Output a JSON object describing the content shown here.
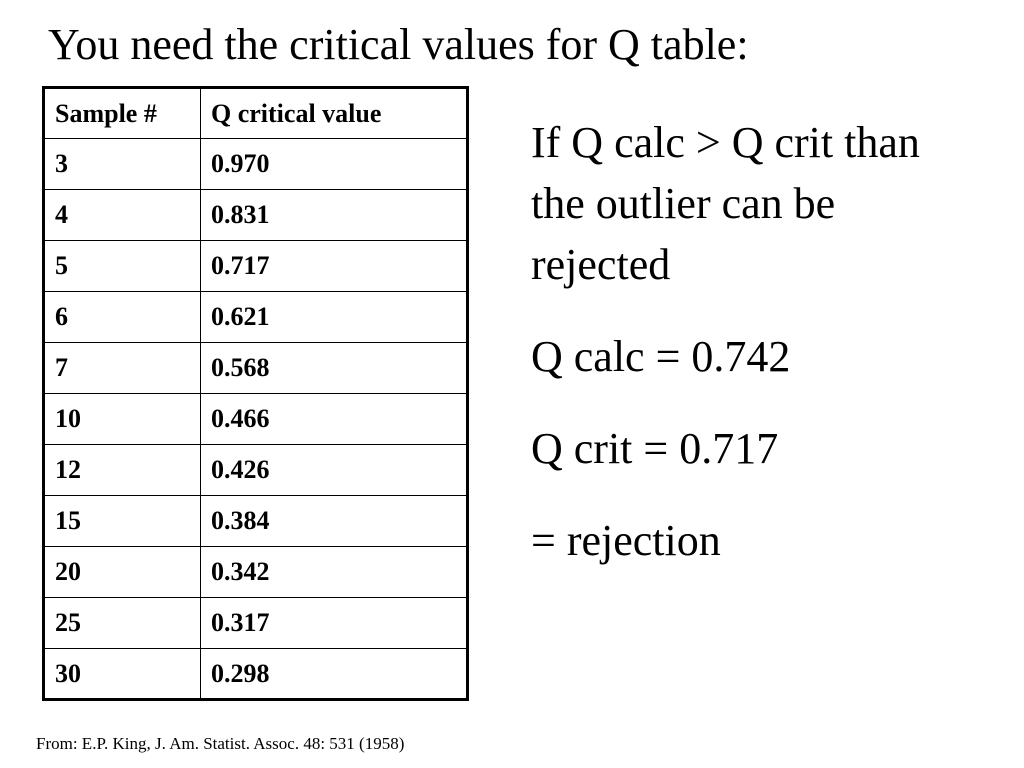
{
  "title": "You need the critical values for Q table:",
  "table": {
    "header": [
      "Sample #",
      "Q critical value"
    ],
    "rows": [
      [
        "3",
        "0.970"
      ],
      [
        "4",
        "0.831"
      ],
      [
        "5",
        "0.717"
      ],
      [
        "6",
        "0.621"
      ],
      [
        "7",
        "0.568"
      ],
      [
        "10",
        "0.466"
      ],
      [
        "12",
        "0.426"
      ],
      [
        "15",
        "0.384"
      ],
      [
        "20",
        "0.342"
      ],
      [
        "25",
        "0.317"
      ],
      [
        "30",
        "0.298"
      ]
    ]
  },
  "notes": [
    "If Q calc > Q crit than the outlier can be rejected",
    "Q calc = 0.742",
    "Q crit = 0.717",
    "= rejection"
  ],
  "footer": "From: E.P. King, J. Am. Statist. Assoc. 48: 531 (1958)"
}
